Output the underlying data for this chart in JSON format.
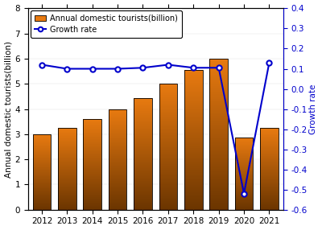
{
  "years": [
    2012,
    2013,
    2014,
    2015,
    2016,
    2017,
    2018,
    2019,
    2020,
    2021
  ],
  "tourists": [
    3.0,
    3.26,
    3.61,
    4.0,
    4.44,
    5.0,
    5.54,
    6.0,
    2.88,
    3.25
  ],
  "growth_rate": [
    0.12,
    0.1,
    0.1,
    0.1,
    0.105,
    0.12,
    0.105,
    0.105,
    -0.52,
    0.13
  ],
  "bar_color_top": "#E87A10",
  "bar_color_bottom": "#6B3500",
  "line_color": "#0000CC",
  "marker_color": "#0000CC",
  "ylabel_left": "Annual domestic tourists(billion)",
  "ylabel_right": "Growth rate",
  "ylim_left": [
    0,
    8
  ],
  "ylim_right": [
    -0.6,
    0.4
  ],
  "yticks_left": [
    0,
    1,
    2,
    3,
    4,
    5,
    6,
    7,
    8
  ],
  "yticks_right": [
    -0.6,
    -0.5,
    -0.4,
    -0.3,
    -0.2,
    -0.1,
    0.0,
    0.1,
    0.2,
    0.3,
    0.4
  ],
  "legend_bar_label": "Annual domestic tourists(billion)",
  "legend_line_label": "Growth rate",
  "background_color": "#FFFFFF",
  "fig_background": "#F0F0F0",
  "edge_color": "#000000",
  "figsize": [
    4.0,
    2.86
  ],
  "dpi": 100
}
